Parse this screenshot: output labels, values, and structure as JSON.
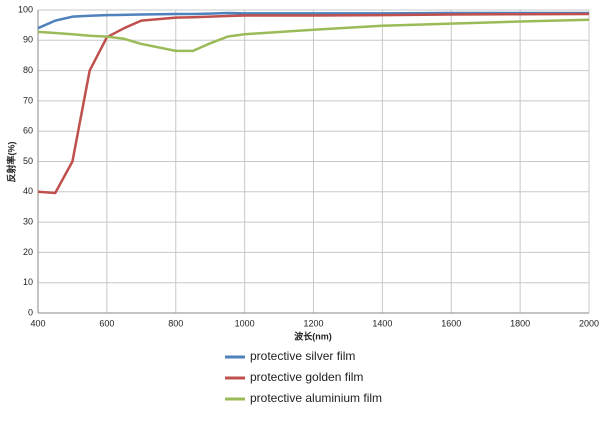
{
  "chart_data": {
    "type": "line",
    "x_label": "波长(nm)",
    "y_label": "反射率(%)",
    "x": [
      400,
      450,
      500,
      550,
      600,
      650,
      700,
      800,
      850,
      900,
      950,
      1000,
      1200,
      1400,
      1600,
      1800,
      2000
    ],
    "series": [
      {
        "name": "protective silver film",
        "color": "#4f81bd",
        "values": [
          94,
          96.5,
          97.8,
          98.1,
          98.3,
          98.4,
          98.5,
          98.7,
          98.7,
          98.8,
          99,
          98.9,
          98.9,
          98.9,
          99,
          99,
          99
        ]
      },
      {
        "name": "protective golden film",
        "color": "#c0504d",
        "values": [
          40,
          39.6,
          50,
          80,
          91,
          94,
          96.5,
          97.5,
          97.6,
          97.8,
          98,
          98.2,
          98.2,
          98.3,
          98.5,
          98.6,
          98.7
        ]
      },
      {
        "name": "protective aluminium film",
        "color": "#9bbb59",
        "values": [
          92.8,
          92.4,
          92,
          91.5,
          91.2,
          90.5,
          88.8,
          86.5,
          86.5,
          89,
          91.2,
          92,
          93.5,
          94.8,
          95.5,
          96.2,
          96.8
        ]
      }
    ],
    "xlim": [
      400,
      2000
    ],
    "xticks": [
      400,
      600,
      800,
      1000,
      1200,
      1400,
      1600,
      1800,
      2000
    ],
    "ylim": [
      0,
      100
    ],
    "yticks": [
      0,
      10,
      20,
      30,
      40,
      50,
      60,
      70,
      80,
      90,
      100
    ],
    "grid": true,
    "legend": "bottom"
  }
}
